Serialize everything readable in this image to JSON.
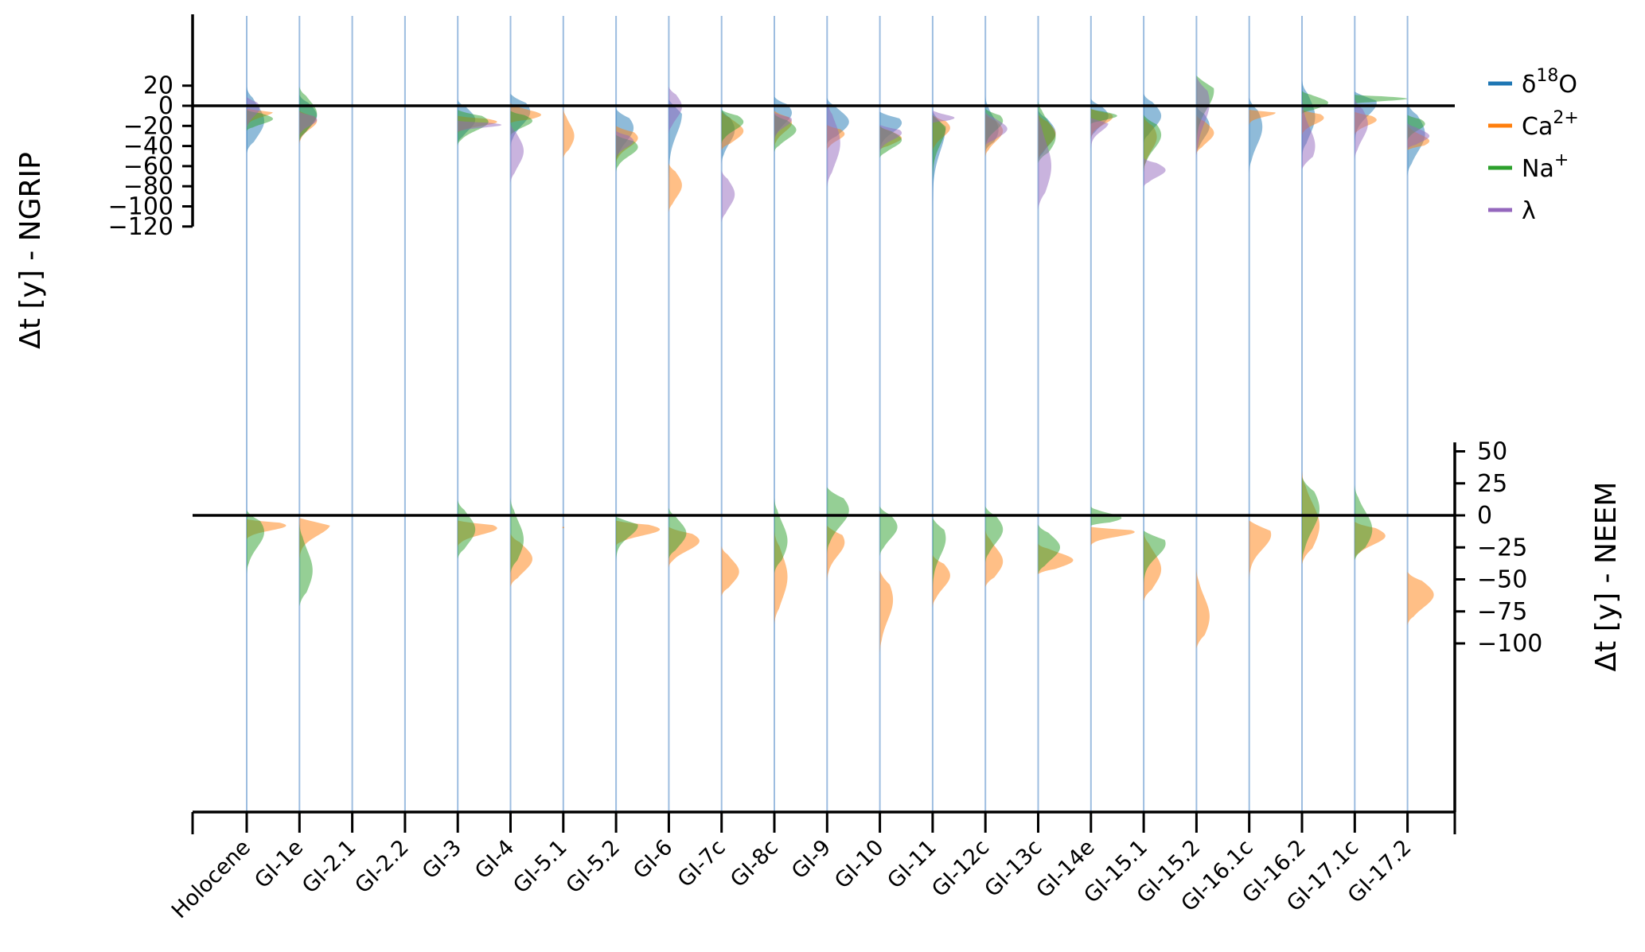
{
  "chart_data": {
    "type": "violin",
    "categories": [
      "Holocene",
      "GI-1e",
      "GI-2.1",
      "GI-2.2",
      "GI-3",
      "GI-4",
      "GI-5.1",
      "GI-5.2",
      "GI-6",
      "GI-7c",
      "GI-8c",
      "GI-9",
      "GI-10",
      "GI-11",
      "GI-12c",
      "GI-13c",
      "GI-14e",
      "GI-15.1",
      "GI-15.2",
      "GI-16.1c",
      "GI-16.2",
      "GI-17.1c",
      "GI-17.2"
    ],
    "colors": {
      "d18O": "#1f77b4",
      "Ca": "#ff7f0e",
      "Na": "#2ca02c",
      "lambda": "#9467bd"
    },
    "legend": {
      "position": "right",
      "entries": [
        {
          "key": "d18O",
          "label": "δ¹⁸O"
        },
        {
          "key": "Ca",
          "label": "Ca²⁺"
        },
        {
          "key": "Na",
          "label": "Na⁺"
        },
        {
          "key": "lambda",
          "label": "λ"
        }
      ]
    },
    "panels": [
      {
        "id": "top",
        "ylabel": "Δt [y] - NGRIP",
        "ylim": [
          -120,
          20
        ],
        "yticks": [
          20,
          0,
          -20,
          -40,
          -60,
          -80,
          -100,
          -120
        ],
        "ytick_labels": [
          "20",
          "0",
          "−20",
          "−40",
          "−60",
          "−80",
          "−100",
          "−120"
        ],
        "axis_side": "left",
        "zero_line": true,
        "series": {
          "d18O": [
            [
              -47,
              19,
              -15,
              0.4
            ],
            [
              -36,
              11,
              -10,
              0.4
            ],
            null,
            null,
            [
              -38,
              6,
              -14,
              0.4
            ],
            [
              -42,
              12,
              -6,
              0.45
            ],
            null,
            [
              -58,
              -3,
              -22,
              0.4
            ],
            [
              -78,
              6,
              -8,
              0.3
            ],
            [
              -58,
              -3,
              -24,
              0.3
            ],
            [
              -35,
              9,
              -7,
              0.4
            ],
            [
              -38,
              8,
              -16,
              0.5
            ],
            [
              -45,
              -6,
              -17,
              0.5
            ],
            [
              -108,
              -6,
              -20,
              0.3
            ],
            [
              -45,
              10,
              -24,
              0.3
            ],
            [
              -56,
              -4,
              -27,
              0.4
            ],
            [
              -33,
              7,
              -10,
              0.4
            ],
            [
              -37,
              12,
              -10,
              0.4
            ],
            [
              -49,
              0,
              -20,
              0.3
            ],
            [
              -67,
              8,
              -21,
              0.3
            ],
            [
              -50,
              25,
              -11,
              0.3
            ],
            [
              -40,
              14,
              3,
              0.5
            ],
            [
              -70,
              3,
              -28,
              0.4
            ]
          ],
          "Ca": [
            [
              -24,
              -3,
              -6,
              0.6
            ],
            [
              -39,
              -5,
              -15,
              0.4
            ],
            null,
            null,
            [
              -27,
              -10,
              -16,
              0.9
            ],
            [
              -17,
              3,
              -9,
              0.7
            ],
            [
              -52,
              -2,
              -30,
              0.25
            ],
            [
              -58,
              -20,
              -32,
              0.5
            ],
            [
              -106,
              -57,
              -79,
              0.3
            ],
            [
              -44,
              -5,
              -25,
              0.5
            ],
            [
              -42,
              -5,
              -17,
              0.4
            ],
            [
              -45,
              -19,
              -28,
              0.4
            ],
            [
              -44,
              -20,
              -32,
              0.5
            ],
            [
              -46,
              -9,
              -22,
              0.4
            ],
            [
              -51,
              -8,
              -25,
              0.4
            ],
            [
              -54,
              -8,
              -28,
              0.4
            ],
            [
              -34,
              -3,
              -11,
              0.5
            ],
            [
              -66,
              -11,
              -31,
              0.3
            ],
            [
              -48,
              -9,
              -27,
              0.4
            ],
            [
              -20,
              -4,
              -7,
              0.6
            ],
            [
              -30,
              -4,
              -12,
              0.5
            ],
            [
              -29,
              -6,
              -14,
              0.5
            ],
            [
              -44,
              -18,
              -35,
              0.5
            ]
          ],
          "Na": [
            [
              -25,
              -4,
              -13,
              0.6
            ],
            [
              -35,
              19,
              -8,
              0.4
            ],
            null,
            null,
            [
              -40,
              -4,
              -16,
              0.7
            ],
            [
              -30,
              -5,
              -15,
              0.5
            ],
            null,
            [
              -66,
              -29,
              -41,
              0.5
            ],
            null,
            [
              -38,
              -4,
              -16,
              0.5
            ],
            [
              -46,
              -8,
              -24,
              0.5
            ],
            null,
            [
              -52,
              -20,
              -34,
              0.5
            ],
            [
              -80,
              -9,
              -21,
              0.3
            ],
            [
              -42,
              -3,
              -15,
              0.4
            ],
            [
              -57,
              6,
              -31,
              0.4
            ],
            [
              -18,
              -3,
              -10,
              0.6
            ],
            [
              -66,
              -9,
              -29,
              0.4
            ],
            [
              -45,
              30,
              15,
              0.4
            ],
            null,
            [
              -8,
              15,
              3,
              0.6
            ],
            [
              2,
              11,
              7,
              1.2
            ],
            [
              -35,
              -9,
              -18,
              0.4
            ]
          ],
          "lambda": [
            [
              -24,
              9,
              -2,
              0.3
            ],
            [
              -30,
              -6,
              -14,
              0.4
            ],
            null,
            null,
            [
              -26,
              -15,
              -19,
              1.0
            ],
            [
              -77,
              -17,
              -45,
              0.3
            ],
            null,
            [
              -52,
              -25,
              -35,
              0.4
            ],
            [
              -28,
              19,
              -1,
              0.3
            ],
            [
              -116,
              -64,
              -88,
              0.3
            ],
            [
              -36,
              -7,
              -14,
              0.4
            ],
            [
              -81,
              6,
              -37,
              0.3
            ],
            [
              -47,
              -19,
              -27,
              0.5
            ],
            [
              -17,
              -4,
              -12,
              0.5
            ],
            [
              -40,
              -6,
              -23,
              0.5
            ],
            [
              -103,
              -4,
              -60,
              0.3
            ],
            [
              -46,
              -12,
              -17,
              0.4
            ],
            [
              -81,
              -52,
              -64,
              0.5
            ],
            [
              -56,
              29,
              3,
              0.3
            ],
            null,
            [
              -63,
              11,
              -40,
              0.3
            ],
            [
              -54,
              7,
              -18,
              0.3
            ],
            [
              -43,
              -17,
              -30,
              0.5
            ]
          ]
        }
      },
      {
        "id": "bottom",
        "ylabel": "Δt [y] - NEEM",
        "ylim": [
          -112,
          57
        ],
        "yticks": [
          50,
          25,
          0,
          -25,
          -50,
          -75,
          -100
        ],
        "ytick_labels": [
          "50",
          "25",
          "0",
          "−25",
          "−50",
          "−75",
          "−100"
        ],
        "axis_side": "right",
        "zero_line": true,
        "series": {
          "Ca": [
            [
              -19,
              -3,
              -8,
              0.9
            ],
            [
              -38,
              -2,
              -7,
              0.7
            ],
            null,
            null,
            [
              -25,
              -4,
              -10,
              0.9
            ],
            [
              -56,
              -14,
              -34,
              0.5
            ],
            [
              -10,
              -9,
              -9,
              0
            ],
            [
              -24,
              -4,
              -11,
              1.0
            ],
            [
              -41,
              -9,
              -20,
              0.7
            ],
            [
              -63,
              -24,
              -44,
              0.4
            ],
            [
              -85,
              -12,
              -48,
              0.3
            ],
            [
              -52,
              -8,
              -21,
              0.4
            ],
            [
              -109,
              -43,
              -66,
              0.3
            ],
            [
              -72,
              -31,
              -47,
              0.4
            ],
            [
              -56,
              -11,
              -36,
              0.4
            ],
            [
              -46,
              -22,
              -35,
              0.8
            ],
            [
              -24,
              -9,
              -13,
              1.0
            ],
            [
              -67,
              -13,
              -42,
              0.4
            ],
            [
              -104,
              -41,
              -79,
              0.3
            ],
            [
              -52,
              -4,
              -15,
              0.5
            ],
            [
              -38,
              35,
              -8,
              0.4
            ],
            [
              -34,
              -5,
              -16,
              0.7
            ],
            [
              -86,
              -44,
              -62,
              0.6
            ]
          ],
          "Na": [
            [
              -46,
              4,
              -13,
              0.4
            ],
            [
              -71,
              -6,
              -43,
              0.3
            ],
            null,
            null,
            [
              -34,
              12,
              -11,
              0.4
            ],
            [
              -45,
              14,
              -19,
              0.3
            ],
            null,
            [
              -37,
              -1,
              -8,
              0.5
            ],
            [
              -34,
              6,
              -14,
              0.4
            ],
            null,
            [
              -45,
              14,
              -20,
              0.3
            ],
            [
              -30,
              22,
              4,
              0.5
            ],
            [
              -32,
              7,
              -9,
              0.4
            ],
            [
              -58,
              -2,
              -18,
              0.3
            ],
            [
              -37,
              7,
              -11,
              0.4
            ],
            [
              -46,
              -7,
              -25,
              0.5
            ],
            [
              -8,
              7,
              -2,
              0.7
            ],
            [
              -55,
              -12,
              -22,
              0.5
            ],
            null,
            null,
            [
              -38,
              30,
              5,
              0.4
            ],
            [
              -35,
              24,
              -11,
              0.4
            ],
            null
          ]
        }
      }
    ],
    "x_vertical_lines": true
  }
}
